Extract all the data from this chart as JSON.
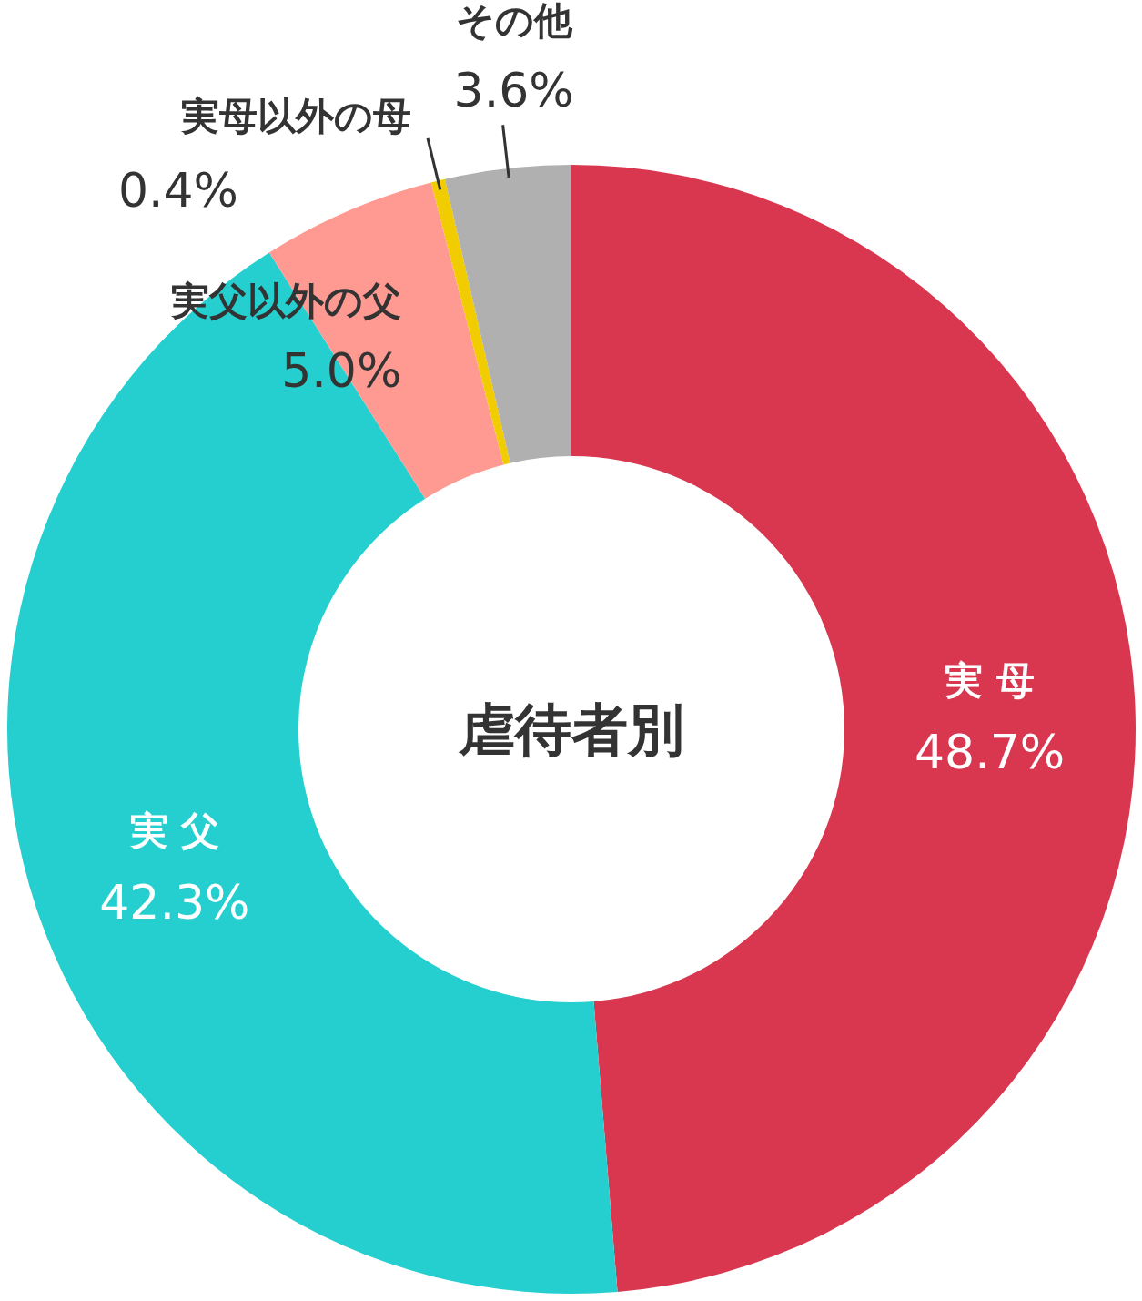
{
  "chart_data": {
    "type": "donut",
    "title": "虐待者別",
    "categories": [
      "実 母",
      "実 父",
      "実父以外の父",
      "実母以外の母",
      "その他"
    ],
    "values": [
      48.7,
      42.3,
      5.0,
      0.4,
      3.6
    ],
    "colors": [
      "#d9374f",
      "#25cfcf",
      "#ff9a92",
      "#f0cc00",
      "#b0b0b0"
    ],
    "value_labels": [
      "48.7%",
      "42.3%",
      "5.0%",
      "0.4%",
      "3.6%"
    ]
  }
}
